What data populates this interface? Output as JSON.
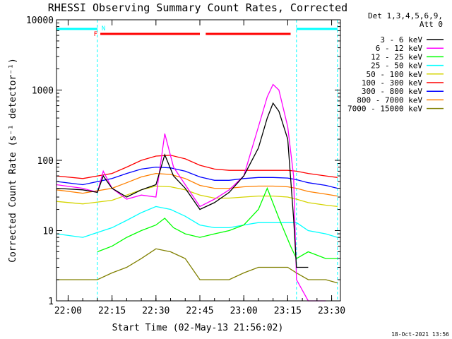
{
  "chart_data": {
    "type": "line",
    "title": "RHESSI Observing Summary Count Rates, Corrected",
    "xlabel": "Start Time (02-May-13 21:56:02)",
    "ylabel": "Corrected Count Rate (s⁻¹ detector⁻¹)",
    "y_scale": "log",
    "ylim": [
      1,
      10000
    ],
    "xlim": [
      "21:56:02",
      "23:33:00"
    ],
    "x_ticks": [
      "22:00",
      "22:15",
      "22:30",
      "22:45",
      "23:00",
      "23:15",
      "23:30"
    ],
    "y_ticks": [
      "1",
      "10",
      "100",
      "1000",
      "10000"
    ],
    "legend_header": [
      "Det 1,3,4,5,6,9,",
      "Att 0"
    ],
    "legend_position": "top-right, outside plot",
    "timestamp": "18-Oct-2021 13:56",
    "markers": {
      "flare": "F",
      "night": "N"
    },
    "night_dashed_lines": [
      "22:10",
      "23:18",
      "23:32"
    ],
    "flare_intervals": [
      [
        "22:11",
        "22:45"
      ],
      [
        "22:47",
        "23:16"
      ]
    ],
    "night_intervals": [
      [
        "21:56",
        "22:10"
      ],
      [
        "23:18",
        "23:32"
      ]
    ],
    "colors": {
      "background": "#ffffff",
      "axes": "#000000",
      "flare_bar": "#ff0000",
      "night_bar": "#00ffff"
    },
    "series": [
      {
        "name": "3 - 6 keV",
        "color": "#000000",
        "x": [
          "21:56",
          "22:05",
          "22:10",
          "22:12",
          "22:15",
          "22:20",
          "22:25",
          "22:30",
          "22:33",
          "22:36",
          "22:40",
          "22:45",
          "22:50",
          "22:55",
          "23:00",
          "23:05",
          "23:08",
          "23:10",
          "23:12",
          "23:15",
          "23:17",
          "23:18",
          "23:20",
          "23:22"
        ],
        "y": [
          40,
          38,
          35,
          60,
          40,
          30,
          38,
          45,
          120,
          60,
          40,
          20,
          25,
          35,
          60,
          150,
          400,
          650,
          500,
          200,
          15,
          3,
          3,
          3
        ]
      },
      {
        "name": "6 - 12 keV",
        "color": "#ff00ff",
        "x": [
          "21:56",
          "22:05",
          "22:10",
          "22:12",
          "22:15",
          "22:20",
          "22:25",
          "22:30",
          "22:33",
          "22:36",
          "22:40",
          "22:45",
          "22:50",
          "22:55",
          "23:00",
          "23:05",
          "23:08",
          "23:10",
          "23:12",
          "23:15",
          "23:17",
          "23:18",
          "23:22",
          "23:28"
        ],
        "y": [
          45,
          40,
          35,
          70,
          40,
          28,
          32,
          30,
          240,
          80,
          45,
          22,
          28,
          38,
          60,
          300,
          800,
          1200,
          1000,
          300,
          60,
          2,
          1,
          1
        ]
      },
      {
        "name": "12 - 25 keV",
        "color": "#00ff00",
        "x": [
          "22:10",
          "22:15",
          "22:20",
          "22:25",
          "22:30",
          "22:33",
          "22:36",
          "22:40",
          "22:45",
          "22:50",
          "22:55",
          "23:00",
          "23:05",
          "23:08",
          "23:12",
          "23:16",
          "23:18",
          "23:22",
          "23:28",
          "23:32"
        ],
        "y": [
          5,
          6,
          8,
          10,
          12,
          15,
          11,
          9,
          8,
          9,
          10,
          12,
          20,
          40,
          15,
          6,
          4,
          5,
          4,
          4
        ]
      },
      {
        "name": "25 - 50 keV",
        "color": "#00ffff",
        "x": [
          "21:56",
          "22:05",
          "22:15",
          "22:20",
          "22:25",
          "22:30",
          "22:35",
          "22:40",
          "22:45",
          "22:50",
          "22:55",
          "23:00",
          "23:05",
          "23:10",
          "23:15",
          "23:18",
          "23:22",
          "23:28",
          "23:32"
        ],
        "y": [
          9,
          8,
          11,
          14,
          18,
          22,
          20,
          16,
          12,
          11,
          11,
          12,
          13,
          13,
          13,
          13,
          10,
          9,
          8
        ]
      },
      {
        "name": "50 - 100 keV",
        "color": "#d4d400",
        "x": [
          "21:56",
          "22:05",
          "22:15",
          "22:20",
          "22:25",
          "22:30",
          "22:35",
          "22:40",
          "22:45",
          "22:50",
          "22:55",
          "23:00",
          "23:05",
          "23:10",
          "23:15",
          "23:18",
          "23:22",
          "23:28",
          "23:32"
        ],
        "y": [
          26,
          24,
          27,
          32,
          38,
          43,
          42,
          38,
          32,
          29,
          29,
          30,
          31,
          31,
          30,
          28,
          25,
          23,
          22
        ]
      },
      {
        "name": "100 - 300 keV",
        "color": "#ff0000",
        "x": [
          "21:56",
          "22:05",
          "22:15",
          "22:20",
          "22:25",
          "22:30",
          "22:35",
          "22:40",
          "22:45",
          "22:50",
          "22:55",
          "23:00",
          "23:05",
          "23:10",
          "23:15",
          "23:18",
          "23:22",
          "23:28",
          "23:32"
        ],
        "y": [
          60,
          55,
          65,
          80,
          100,
          115,
          118,
          105,
          85,
          75,
          72,
          72,
          72,
          72,
          72,
          70,
          65,
          60,
          57
        ]
      },
      {
        "name": "300 - 800 keV",
        "color": "#0000ff",
        "x": [
          "21:56",
          "22:05",
          "22:15",
          "22:20",
          "22:25",
          "22:30",
          "22:35",
          "22:40",
          "22:45",
          "22:50",
          "22:55",
          "23:00",
          "23:05",
          "23:10",
          "23:15",
          "23:18",
          "23:22",
          "23:28",
          "23:32"
        ],
        "y": [
          50,
          45,
          55,
          65,
          75,
          80,
          78,
          70,
          58,
          52,
          52,
          55,
          57,
          57,
          56,
          53,
          48,
          44,
          40
        ]
      },
      {
        "name": "800 - 7000 keV",
        "color": "#ff8000",
        "x": [
          "21:56",
          "22:05",
          "22:15",
          "22:20",
          "22:25",
          "22:30",
          "22:35",
          "22:40",
          "22:45",
          "22:50",
          "22:55",
          "23:00",
          "23:05",
          "23:10",
          "23:15",
          "23:18",
          "23:22",
          "23:28",
          "23:32"
        ],
        "y": [
          38,
          34,
          40,
          48,
          58,
          65,
          63,
          55,
          44,
          40,
          40,
          42,
          43,
          43,
          42,
          40,
          36,
          33,
          31
        ]
      },
      {
        "name": "7000 - 15000 keV",
        "color": "#808000",
        "x": [
          "21:56",
          "22:10",
          "22:15",
          "22:20",
          "22:25",
          "22:30",
          "22:35",
          "22:40",
          "22:45",
          "22:50",
          "22:55",
          "23:00",
          "23:05",
          "23:10",
          "23:15",
          "23:18",
          "23:22",
          "23:28",
          "23:32"
        ],
        "y": [
          2,
          2,
          2.5,
          3,
          4,
          5.5,
          5,
          4,
          2,
          2,
          2,
          2.5,
          3,
          3,
          3,
          2.5,
          2,
          2,
          1.8
        ]
      }
    ]
  }
}
